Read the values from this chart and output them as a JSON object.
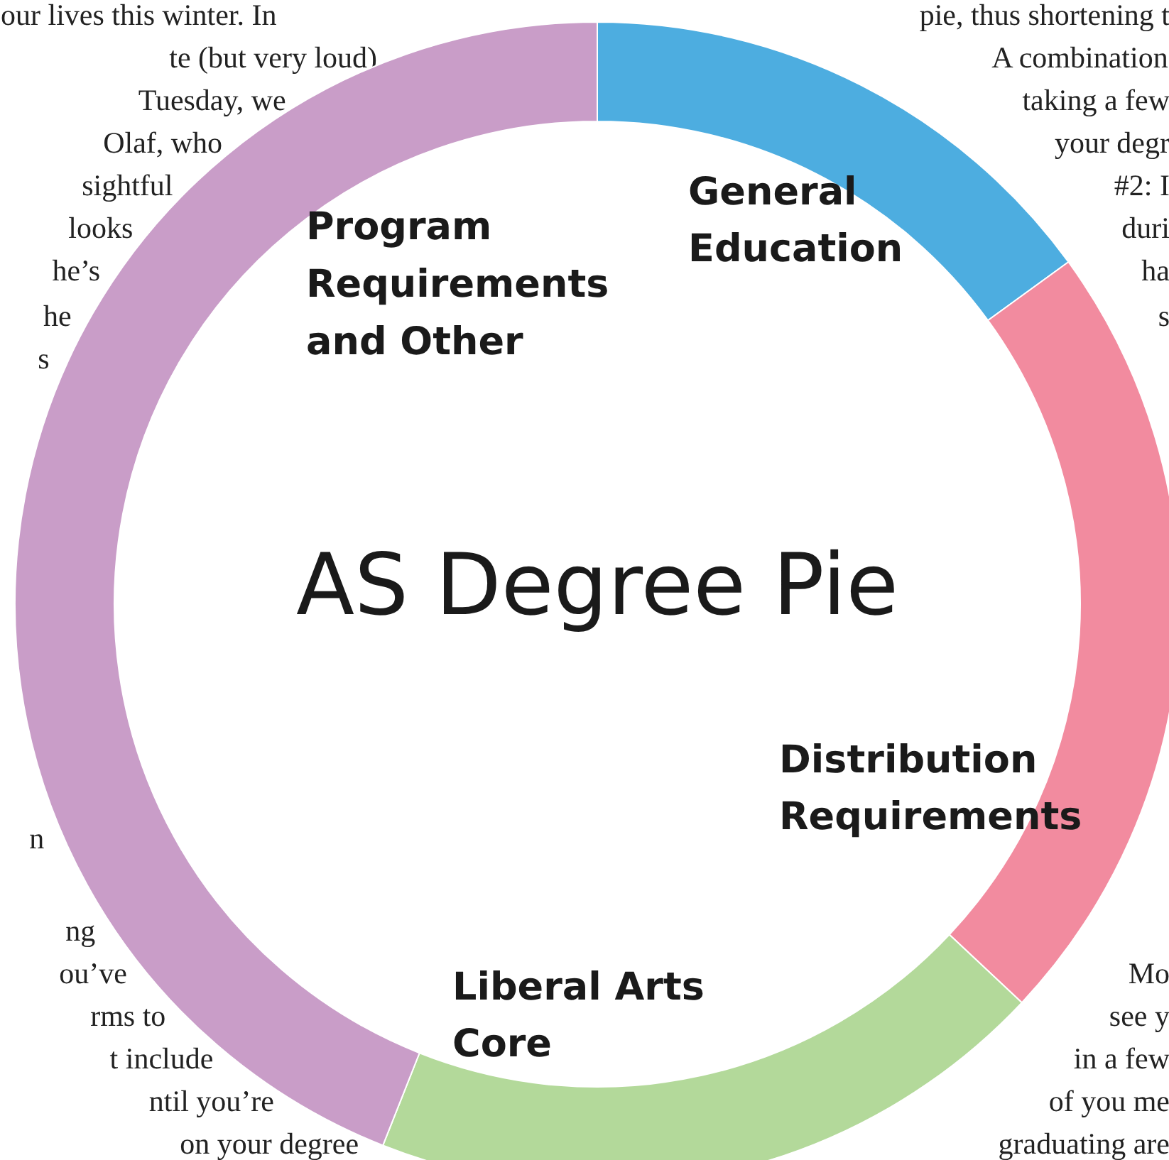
{
  "chart_data": {
    "type": "donut",
    "title": "AS Degree Pie",
    "categories": [
      "General Education",
      "Distribution Requirements",
      "Liberal Arts Core",
      "Program Requirements and Other"
    ],
    "values": [
      15,
      22,
      19,
      44
    ],
    "colors": [
      "#4dade0",
      "#f28b9f",
      "#b3d99a",
      "#c99dc8"
    ],
    "annotations": [
      "our lives this winter. In",
      "te (but very loud)",
      "Tuesday, we",
      "Olaf, who",
      "sightful",
      "looks",
      "he’s",
      "he",
      "s",
      "n",
      "ng",
      "ou’ve",
      "rms to",
      "t include",
      "ntil you’re",
      "on your degree",
      "pie, thus shortening t",
      "A combination",
      "taking a few",
      "your degr",
      "#2: I",
      "duri",
      "ha",
      "s",
      "Mo",
      "see y",
      "in a few",
      "of you me",
      "graduating are"
    ]
  }
}
